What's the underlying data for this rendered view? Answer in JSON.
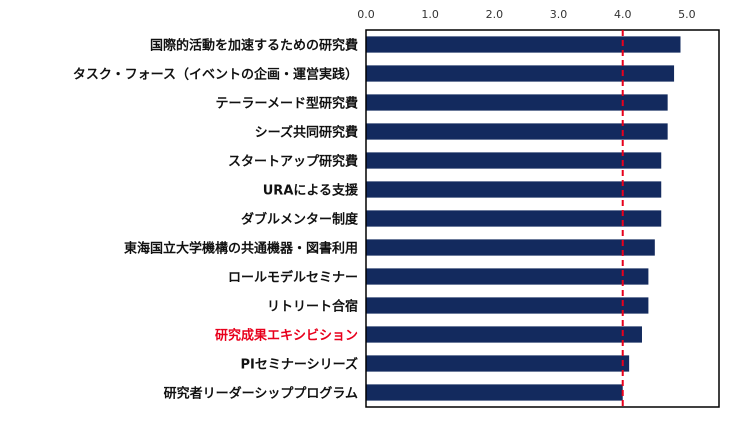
{
  "chart_data": {
    "type": "bar",
    "orientation": "horizontal",
    "categories": [
      "国際的活動を加速するための研究費",
      "タスク・フォース（イベントの企画・運営実践）",
      "テーラーメード型研究費",
      "シーズ共同研究費",
      "スタートアップ研究費",
      "URAによる支援",
      "ダブルメンター制度",
      "東海国立大学機構の共通機器・図書利用",
      "ロールモデルセミナー",
      "リトリート合宿",
      "研究成果エキシビション",
      "PIセミナーシリーズ",
      "研究者リーダーシッププログラム"
    ],
    "values": [
      4.9,
      4.8,
      4.7,
      4.7,
      4.6,
      4.6,
      4.6,
      4.5,
      4.4,
      4.4,
      4.3,
      4.1,
      4.0
    ],
    "highlighted_category": "研究成果エキシビション",
    "xlim": [
      0,
      5.5
    ],
    "xticks": [
      "0.0",
      "1.0",
      "2.0",
      "3.0",
      "4.0",
      "5.0"
    ],
    "tick_values": [
      0,
      1,
      2,
      3,
      4,
      5
    ],
    "reference_line": 4.0,
    "title": "",
    "xlabel": "",
    "ylabel": "",
    "grid": false,
    "legend": "none",
    "colors": {
      "bar": "#132a5e",
      "reference_line": "#e8001c",
      "highlight_label": "#e8001c",
      "label": "#111111",
      "frame": "#000000"
    }
  }
}
